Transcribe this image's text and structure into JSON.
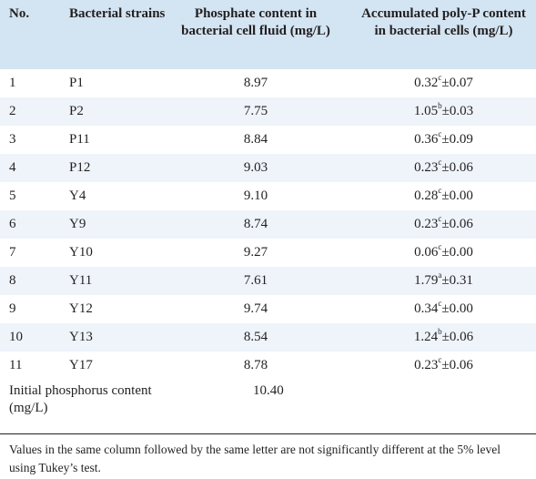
{
  "headers": {
    "no": "No.",
    "strain": "Bacterial strains",
    "phosphate": "Phosphate content in bacterial cell fluid (mg/L)",
    "polyp": "Accumulated poly-P content in bacterial cells (mg/L)"
  },
  "rows": [
    {
      "no": "1",
      "strain": "P1",
      "phosphate": "8.97",
      "polyp_mean": "0.32",
      "polyp_letter": "c",
      "polyp_sd": "±0.07"
    },
    {
      "no": "2",
      "strain": "P2",
      "phosphate": "7.75",
      "polyp_mean": "1.05",
      "polyp_letter": "b",
      "polyp_sd": "±0.03"
    },
    {
      "no": "3",
      "strain": "P11",
      "phosphate": "8.84",
      "polyp_mean": "0.36",
      "polyp_letter": "c",
      "polyp_sd": "±0.09"
    },
    {
      "no": "4",
      "strain": "P12",
      "phosphate": "9.03",
      "polyp_mean": "0.23",
      "polyp_letter": "c",
      "polyp_sd": "±0.06"
    },
    {
      "no": "5",
      "strain": "Y4",
      "phosphate": "9.10",
      "polyp_mean": "0.28",
      "polyp_letter": "c",
      "polyp_sd": "±0.00"
    },
    {
      "no": "6",
      "strain": "Y9",
      "phosphate": "8.74",
      "polyp_mean": "0.23",
      "polyp_letter": "c",
      "polyp_sd": "±0.06"
    },
    {
      "no": "7",
      "strain": "Y10",
      "phosphate": "9.27",
      "polyp_mean": "0.06",
      "polyp_letter": "c",
      "polyp_sd": "±0.00"
    },
    {
      "no": "8",
      "strain": "Y11",
      "phosphate": "7.61",
      "polyp_mean": "1.79",
      "polyp_letter": "a",
      "polyp_sd": "±0.31"
    },
    {
      "no": "9",
      "strain": "Y12",
      "phosphate": "9.74",
      "polyp_mean": "0.34",
      "polyp_letter": "c",
      "polyp_sd": "±0.00"
    },
    {
      "no": "10",
      "strain": "Y13",
      "phosphate": "8.54",
      "polyp_mean": "1.24",
      "polyp_letter": "b",
      "polyp_sd": "±0.06"
    },
    {
      "no": "11",
      "strain": "Y17",
      "phosphate": "8.78",
      "polyp_mean": "0.23",
      "polyp_letter": "c",
      "polyp_sd": "±0.06"
    }
  ],
  "initial": {
    "label": "Initial phosphorus content (mg/L)",
    "value": "10.40"
  },
  "footnote": "Values in the same column followed by the same letter are not significantly different at the 5% level using Tukey’s test.",
  "colors": {
    "header_bg": "#d3e4f2",
    "alt_row_bg": "#eef4fa",
    "text": "#231f20"
  }
}
